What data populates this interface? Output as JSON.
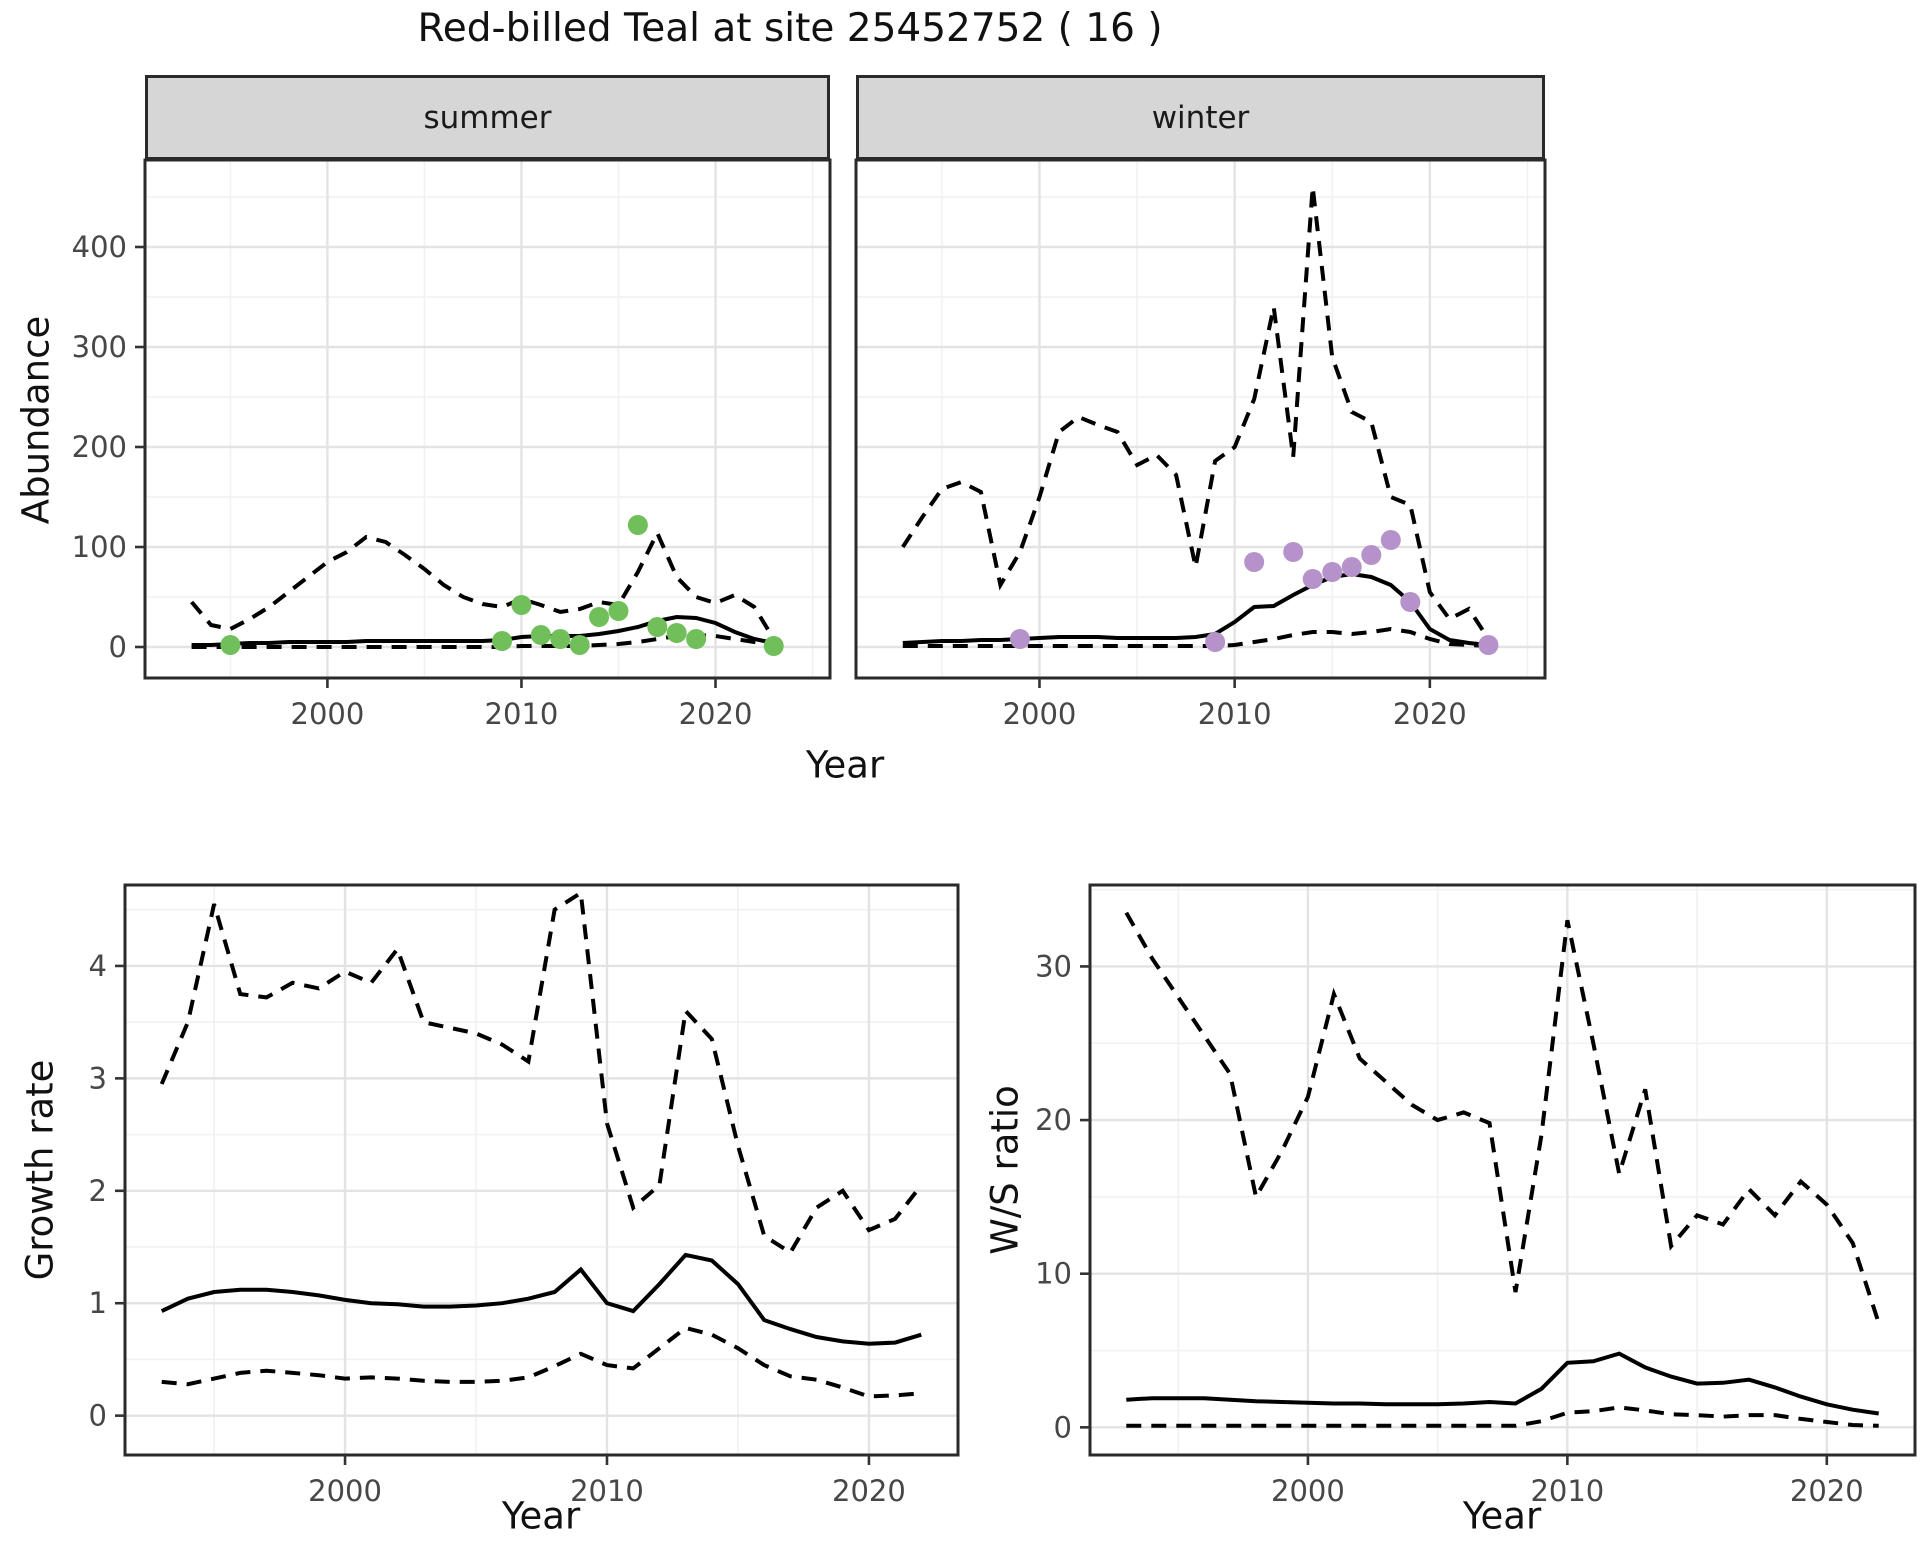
{
  "title": "Red-billed Teal at site 25452752 ( 16 )",
  "colors": {
    "summer_point": "#71bf5b",
    "winter_point": "#b592c9",
    "line": "#000000",
    "grid_major": "#e3e3e3",
    "grid_minor": "#f1f1f1",
    "panel_border": "#2a2a2a",
    "strip_bg": "#d6d6d6",
    "tick_text": "#474747",
    "axis_title_text": "#111111"
  },
  "chart_data": [
    {
      "id": "abundance_summer",
      "type": "line",
      "facet_label": "summer",
      "xlabel": "Year",
      "ylabel": "Abundance",
      "x": [
        1993,
        1994,
        1995,
        1996,
        1997,
        1998,
        1999,
        2000,
        2001,
        2002,
        2003,
        2004,
        2005,
        2006,
        2007,
        2008,
        2009,
        2010,
        2011,
        2012,
        2013,
        2014,
        2015,
        2016,
        2017,
        2018,
        2019,
        2020,
        2021,
        2022,
        2023
      ],
      "series": [
        {
          "name": "mean",
          "style": "solid",
          "values": [
            2,
            2,
            3,
            4,
            4,
            5,
            5,
            5,
            5,
            6,
            6,
            6,
            6,
            6,
            6,
            6,
            7,
            10,
            11,
            11,
            11,
            13,
            16,
            20,
            26,
            30,
            29,
            24,
            15,
            8,
            4
          ]
        },
        {
          "name": "ci_upper",
          "style": "dashed",
          "values": [
            45,
            22,
            18,
            28,
            40,
            55,
            70,
            85,
            95,
            110,
            105,
            92,
            78,
            62,
            50,
            43,
            40,
            48,
            42,
            35,
            38,
            45,
            42,
            75,
            114,
            70,
            50,
            44,
            52,
            40,
            8
          ]
        },
        {
          "name": "ci_lower",
          "style": "dashed",
          "values": [
            0,
            0,
            0,
            0,
            0,
            0,
            0,
            0,
            0,
            0,
            0,
            0,
            0,
            0,
            0,
            0,
            0,
            1,
            1,
            1,
            1,
            2,
            3,
            5,
            8,
            11,
            12,
            11,
            8,
            5,
            2
          ]
        }
      ],
      "points": {
        "name": "observed_counts",
        "color_key": "summer_point",
        "data": [
          [
            1995,
            2
          ],
          [
            2009,
            6
          ],
          [
            2010,
            42
          ],
          [
            2011,
            12
          ],
          [
            2012,
            8
          ],
          [
            2013,
            2
          ],
          [
            2014,
            30
          ],
          [
            2015,
            36
          ],
          [
            2016,
            122
          ],
          [
            2017,
            20
          ],
          [
            2018,
            14
          ],
          [
            2019,
            8
          ],
          [
            2023,
            1
          ]
        ]
      },
      "xlim": [
        1990.6,
        2025.9
      ],
      "ylim": [
        -31,
        487
      ],
      "xticks": [
        2000,
        2010,
        2020
      ],
      "xminor": [
        1995,
        2005,
        2015,
        2025
      ],
      "yticks": [
        0,
        100,
        200,
        300,
        400
      ],
      "yminor": [
        50,
        150,
        250,
        350,
        450
      ],
      "show_y_axis": true,
      "show_x_axis": true
    },
    {
      "id": "abundance_winter",
      "type": "line",
      "facet_label": "winter",
      "xlabel": "Year",
      "ylabel": "Abundance",
      "x": [
        1993,
        1994,
        1995,
        1996,
        1997,
        1998,
        1999,
        2000,
        2001,
        2002,
        2003,
        2004,
        2005,
        2006,
        2007,
        2008,
        2009,
        2010,
        2011,
        2012,
        2013,
        2014,
        2015,
        2016,
        2017,
        2018,
        2019,
        2020,
        2021,
        2022,
        2023
      ],
      "series": [
        {
          "name": "mean",
          "style": "solid",
          "values": [
            4,
            5,
            6,
            6,
            7,
            7,
            8,
            9,
            10,
            10,
            10,
            9,
            9,
            9,
            9,
            10,
            13,
            25,
            40,
            41,
            52,
            62,
            70,
            73,
            70,
            62,
            45,
            18,
            7,
            4,
            2
          ]
        },
        {
          "name": "ci_upper",
          "style": "dashed",
          "values": [
            100,
            130,
            158,
            165,
            155,
            62,
            95,
            150,
            215,
            230,
            222,
            215,
            182,
            192,
            172,
            80,
            186,
            200,
            248,
            340,
            190,
            460,
            290,
            235,
            225,
            150,
            142,
            55,
            28,
            38,
            8
          ]
        },
        {
          "name": "ci_lower",
          "style": "dashed",
          "values": [
            1,
            1,
            1,
            1,
            1,
            1,
            1,
            1,
            1,
            1,
            1,
            1,
            1,
            1,
            1,
            1,
            1,
            2,
            5,
            8,
            12,
            15,
            15,
            13,
            15,
            18,
            15,
            8,
            3,
            2,
            1
          ]
        }
      ],
      "points": {
        "name": "observed_counts",
        "color_key": "winter_point",
        "data": [
          [
            1999,
            8
          ],
          [
            2009,
            5
          ],
          [
            2011,
            85
          ],
          [
            2013,
            95
          ],
          [
            2014,
            68
          ],
          [
            2015,
            75
          ],
          [
            2016,
            80
          ],
          [
            2017,
            92
          ],
          [
            2018,
            107
          ],
          [
            2019,
            45
          ],
          [
            2023,
            2
          ]
        ]
      },
      "xlim": [
        1990.6,
        2025.9
      ],
      "ylim": [
        -31,
        487
      ],
      "xticks": [
        2000,
        2010,
        2020
      ],
      "xminor": [
        1995,
        2005,
        2015,
        2025
      ],
      "yticks": [
        0,
        100,
        200,
        300,
        400
      ],
      "yminor": [
        50,
        150,
        250,
        350,
        450
      ],
      "show_y_axis": false,
      "show_x_axis": true
    },
    {
      "id": "growth_rate",
      "type": "line",
      "facet_label": "",
      "xlabel": "Year",
      "ylabel": "Growth rate",
      "x": [
        1993,
        1994,
        1995,
        1996,
        1997,
        1998,
        1999,
        2000,
        2001,
        2002,
        2003,
        2004,
        2005,
        2006,
        2007,
        2008,
        2009,
        2010,
        2011,
        2012,
        2013,
        2014,
        2015,
        2016,
        2017,
        2018,
        2019,
        2020,
        2021,
        2022
      ],
      "series": [
        {
          "name": "mean",
          "style": "solid",
          "values": [
            0.93,
            1.04,
            1.1,
            1.12,
            1.12,
            1.1,
            1.07,
            1.03,
            1.0,
            0.99,
            0.97,
            0.97,
            0.98,
            1.0,
            1.04,
            1.1,
            1.3,
            1.0,
            0.93,
            1.17,
            1.43,
            1.38,
            1.17,
            0.85,
            0.77,
            0.7,
            0.66,
            0.64,
            0.65,
            0.72
          ]
        },
        {
          "name": "ci_upper",
          "style": "dashed",
          "values": [
            2.95,
            3.5,
            4.55,
            3.75,
            3.72,
            3.85,
            3.8,
            3.95,
            3.85,
            4.15,
            3.5,
            3.45,
            3.4,
            3.3,
            3.15,
            4.5,
            4.65,
            2.6,
            1.85,
            2.05,
            3.6,
            3.35,
            2.4,
            1.6,
            1.45,
            1.85,
            2.0,
            1.65,
            1.75,
            2.05
          ]
        },
        {
          "name": "ci_lower",
          "style": "dashed",
          "values": [
            0.3,
            0.28,
            0.33,
            0.38,
            0.4,
            0.38,
            0.36,
            0.33,
            0.34,
            0.33,
            0.31,
            0.3,
            0.3,
            0.31,
            0.34,
            0.44,
            0.55,
            0.45,
            0.42,
            0.6,
            0.78,
            0.72,
            0.6,
            0.45,
            0.35,
            0.32,
            0.25,
            0.17,
            0.18,
            0.2
          ]
        }
      ],
      "points": null,
      "xlim": [
        1991.6,
        2023.4
      ],
      "ylim": [
        -0.35,
        4.72
      ],
      "xticks": [
        2000,
        2010,
        2020
      ],
      "xminor": [
        1995,
        2005,
        2015
      ],
      "yticks": [
        0,
        1,
        2,
        3,
        4
      ],
      "yminor": [
        0.5,
        1.5,
        2.5,
        3.5,
        4.5
      ],
      "show_y_axis": true,
      "show_x_axis": true
    },
    {
      "id": "ws_ratio",
      "type": "line",
      "facet_label": "",
      "xlabel": "Year",
      "ylabel": "W/S ratio",
      "x": [
        1993,
        1994,
        1995,
        1996,
        1997,
        1998,
        1999,
        2000,
        2001,
        2002,
        2003,
        2004,
        2005,
        2006,
        2007,
        2008,
        2009,
        2010,
        2011,
        2012,
        2013,
        2014,
        2015,
        2016,
        2017,
        2018,
        2019,
        2020,
        2021,
        2022
      ],
      "series": [
        {
          "name": "mean",
          "style": "solid",
          "values": [
            1.8,
            1.9,
            1.9,
            1.9,
            1.8,
            1.7,
            1.65,
            1.6,
            1.55,
            1.55,
            1.5,
            1.5,
            1.5,
            1.55,
            1.65,
            1.55,
            2.5,
            4.2,
            4.3,
            4.8,
            3.9,
            3.3,
            2.85,
            2.9,
            3.1,
            2.6,
            2.0,
            1.5,
            1.15,
            0.9
          ]
        },
        {
          "name": "ci_upper",
          "style": "dashed",
          "values": [
            33.5,
            30.5,
            28,
            25.5,
            23,
            15,
            18,
            21.5,
            28.2,
            24,
            22.5,
            21,
            20,
            20.5,
            19.8,
            8.8,
            19,
            33,
            25,
            16.5,
            22,
            11.8,
            13.8,
            13.2,
            15.5,
            13.8,
            16,
            14.5,
            12,
            6.8
          ]
        },
        {
          "name": "ci_lower",
          "style": "dashed",
          "values": [
            0.1,
            0.1,
            0.1,
            0.1,
            0.1,
            0.1,
            0.1,
            0.1,
            0.1,
            0.1,
            0.1,
            0.1,
            0.1,
            0.1,
            0.1,
            0.1,
            0.4,
            0.95,
            1.05,
            1.3,
            1.1,
            0.85,
            0.8,
            0.7,
            0.8,
            0.8,
            0.55,
            0.35,
            0.15,
            0.1
          ]
        }
      ],
      "points": null,
      "xlim": [
        1991.6,
        2023.4
      ],
      "ylim": [
        -1.8,
        35.3
      ],
      "xticks": [
        2000,
        2010,
        2020
      ],
      "xminor": [
        1995,
        2005,
        2015
      ],
      "yticks": [
        0,
        10,
        20,
        30
      ],
      "yminor": [
        5,
        15,
        25,
        35
      ],
      "show_y_axis": true,
      "show_x_axis": true
    }
  ]
}
